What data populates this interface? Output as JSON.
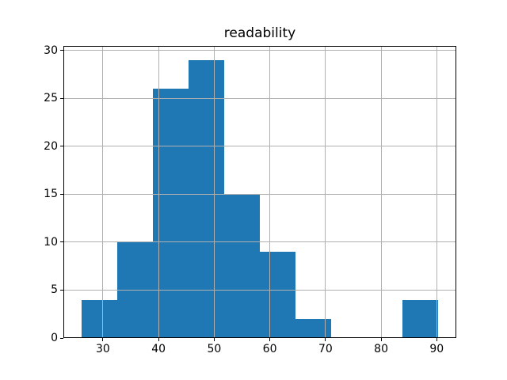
{
  "chart_data": {
    "type": "bar",
    "subtype": "histogram",
    "title": "readability",
    "xlabel": "",
    "ylabel": "",
    "bin_start": 26.1,
    "bin_width": 6.42,
    "bin_edges": [
      26.1,
      32.52,
      38.94,
      45.36,
      51.78,
      58.2,
      64.62,
      71.04,
      77.46,
      83.88,
      90.3
    ],
    "counts": [
      4,
      10,
      26,
      29,
      15,
      9,
      2,
      0,
      0,
      4
    ],
    "xticks": [
      30,
      40,
      50,
      60,
      70,
      80,
      90
    ],
    "yticks": [
      0,
      5,
      10,
      15,
      20,
      25,
      30
    ],
    "xlim": [
      22.89,
      93.51
    ],
    "ylim": [
      0,
      30.45
    ],
    "grid": true,
    "grid_on_top_of_bars": true,
    "legend": null,
    "colors": {
      "bar": "#1f77b4",
      "grid": "#b0b0b0",
      "spine": "#000000",
      "text": "#000000",
      "background": "#ffffff"
    }
  }
}
